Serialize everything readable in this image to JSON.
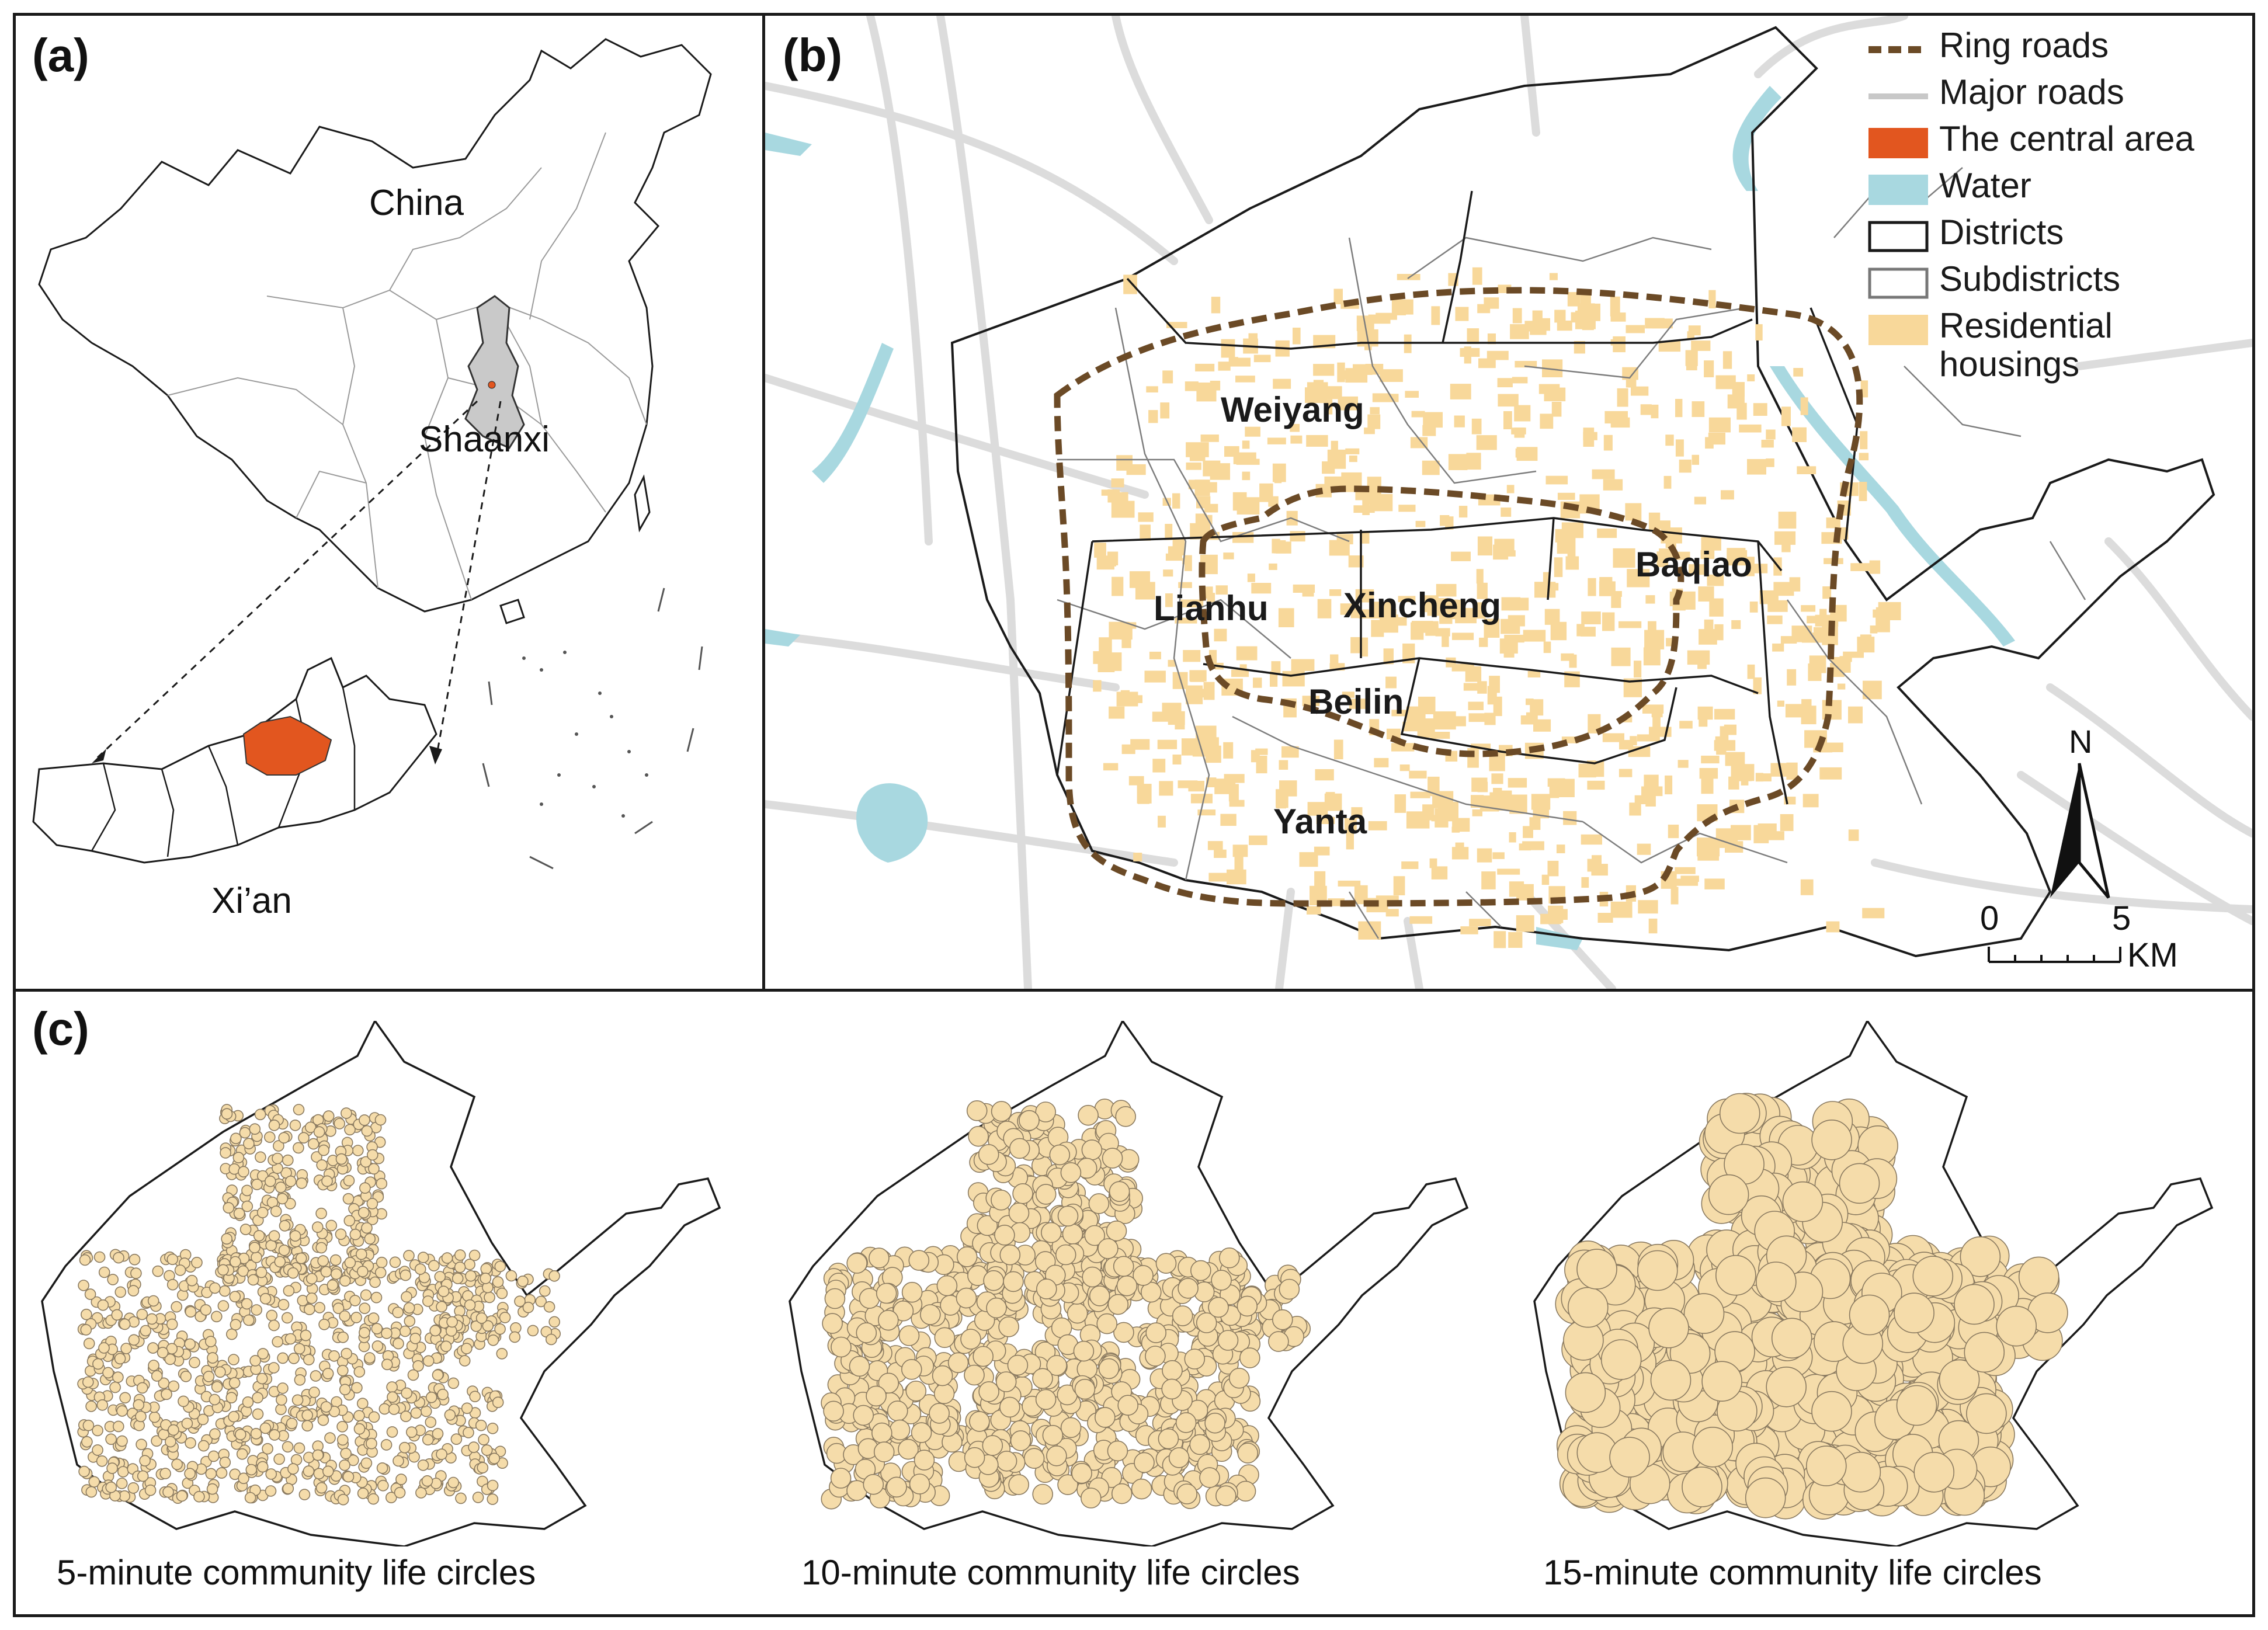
{
  "panels": {
    "a": {
      "label": "(a)",
      "country_label": "China",
      "province_label": "Shaanxi",
      "city_label": "Xi’an"
    },
    "b": {
      "label": "(b)",
      "districts": [
        "Weiyang",
        "Lianhu",
        "Xincheng",
        "Beilin",
        "Yanta",
        "Baqiao"
      ],
      "north_label": "N",
      "scale": {
        "start": "0",
        "end": "5",
        "unit": "KM"
      }
    },
    "c": {
      "label": "(c)",
      "captions": [
        "5-minute community life circles",
        "10-minute community life circles",
        "15-minute community life circles"
      ]
    }
  },
  "legend": [
    {
      "label": "Ring roads",
      "symbol": "dashed-line",
      "color": "#6b4a26"
    },
    {
      "label": "Major roads",
      "symbol": "line",
      "color": "#c8c8c8"
    },
    {
      "label": "The central area",
      "symbol": "fill",
      "color": "#e2561f"
    },
    {
      "label": "Water",
      "symbol": "fill",
      "color": "#a8d8e0"
    },
    {
      "label": "Districts",
      "symbol": "outline",
      "color": "#1a1a1a"
    },
    {
      "label": "Subdistricts",
      "symbol": "outline",
      "color": "#777777"
    },
    {
      "label": "Residential housings",
      "label_line1": "Residential",
      "label_line2": "housings",
      "symbol": "fill",
      "color": "#f8d89a"
    }
  ],
  "colors": {
    "ring": "#6b4a26",
    "road": "#d8d8d8",
    "central": "#e2561f",
    "water": "#a8d8e0",
    "residential": "#f8d89a",
    "circle_fill": "#f5dcaa",
    "circle_stroke": "#8a7a60"
  }
}
